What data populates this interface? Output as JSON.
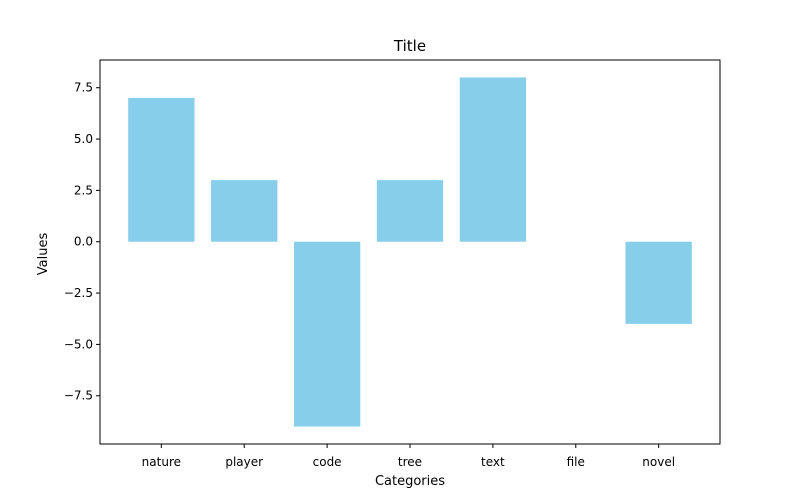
{
  "chart_data": {
    "type": "bar",
    "title": "Title",
    "xlabel": "Categories",
    "ylabel": "Values",
    "categories": [
      "nature",
      "player",
      "code",
      "tree",
      "text",
      "file",
      "novel"
    ],
    "values": [
      7,
      3,
      -9,
      3,
      8,
      0,
      -4
    ],
    "ylim": [
      -9.85,
      8.85
    ],
    "yticks": [
      -7.5,
      -5.0,
      -2.5,
      0.0,
      2.5,
      5.0,
      7.5
    ],
    "ytick_labels": [
      "−7.5",
      "−5.0",
      "−2.5",
      "0.0",
      "2.5",
      "5.0",
      "7.5"
    ],
    "bar_color": "#87CEEB",
    "grid": false,
    "legend": "none"
  }
}
